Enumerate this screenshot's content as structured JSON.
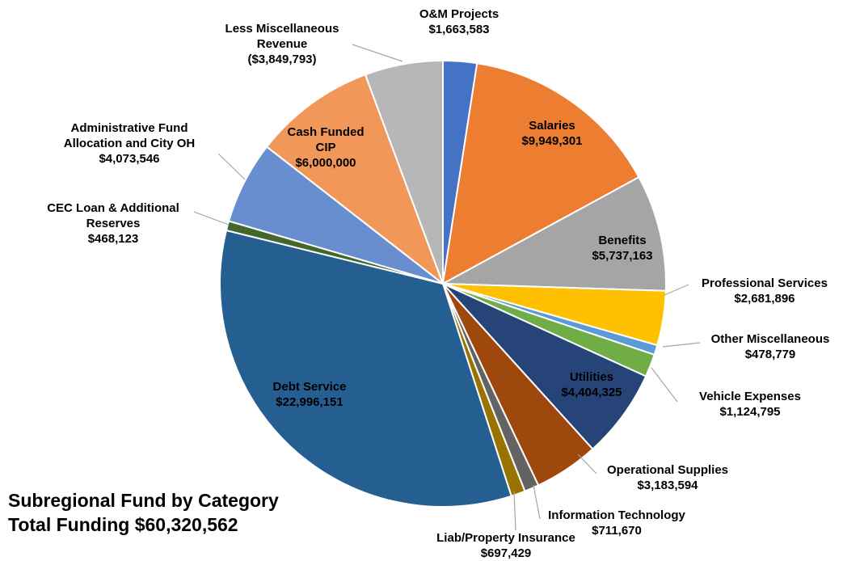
{
  "chart_data": {
    "type": "pie",
    "title": "Subregional Fund by Category",
    "subtitle": "Total Funding $60,320,562",
    "slices": [
      {
        "name": "O&M Projects",
        "label_lines": [
          "O&M Projects"
        ],
        "value_text": "$1,663,583",
        "value": 1663583,
        "color": "#4472C4"
      },
      {
        "name": "Salaries",
        "label_lines": [
          "Salaries"
        ],
        "value_text": "$9,949,301",
        "value": 9949301,
        "color": "#ED7D31"
      },
      {
        "name": "Benefits",
        "label_lines": [
          "Benefits"
        ],
        "value_text": "$5,737,163",
        "value": 5737163,
        "color": "#A5A5A5"
      },
      {
        "name": "Professional Services",
        "label_lines": [
          "Professional Services"
        ],
        "value_text": "$2,681,896",
        "value": 2681896,
        "color": "#FFC000"
      },
      {
        "name": "Other Miscellaneous",
        "label_lines": [
          "Other Miscellaneous"
        ],
        "value_text": "$478,779",
        "value": 478779,
        "color": "#5B9BD5"
      },
      {
        "name": "Vehicle Expenses",
        "label_lines": [
          "Vehicle Expenses"
        ],
        "value_text": "$1,124,795",
        "value": 1124795,
        "color": "#70AD47"
      },
      {
        "name": "Utilities",
        "label_lines": [
          "Utilities"
        ],
        "value_text": "$4,404,325",
        "value": 4404325,
        "color": "#264478"
      },
      {
        "name": "Operational Supplies",
        "label_lines": [
          "Operational Supplies"
        ],
        "value_text": "$3,183,594",
        "value": 3183594,
        "color": "#9E480E"
      },
      {
        "name": "Information Technology",
        "label_lines": [
          "Information Technology"
        ],
        "value_text": "$711,670",
        "value": 711670,
        "color": "#636363"
      },
      {
        "name": "Liab/Property Insurance",
        "label_lines": [
          "Liab/Property Insurance"
        ],
        "value_text": "$697,429",
        "value": 697429,
        "color": "#997300"
      },
      {
        "name": "Debt Service",
        "label_lines": [
          "Debt Service"
        ],
        "value_text": "$22,996,151",
        "value": 22996151,
        "color": "#255E91"
      },
      {
        "name": "CEC Loan & Additional Reserves",
        "label_lines": [
          "CEC Loan & Additional",
          "Reserves"
        ],
        "value_text": "$468,123",
        "value": 468123,
        "color": "#43682B"
      },
      {
        "name": "Administrative Fund Allocation and City OH",
        "label_lines": [
          "Administrative Fund",
          "Allocation and City OH"
        ],
        "value_text": "$4,073,546",
        "value": 4073546,
        "color": "#698ED0"
      },
      {
        "name": "Cash Funded CIP",
        "label_lines": [
          "Cash Funded",
          "CIP"
        ],
        "value_text": "$6,000,000",
        "value": 6000000,
        "color": "#F1975A"
      },
      {
        "name": "Less Miscellaneous Revenue",
        "label_lines": [
          "Less Miscellaneous",
          "Revenue"
        ],
        "value_text": "($3,849,793)",
        "value": 3849793,
        "color": "#B7B7B7"
      }
    ]
  }
}
